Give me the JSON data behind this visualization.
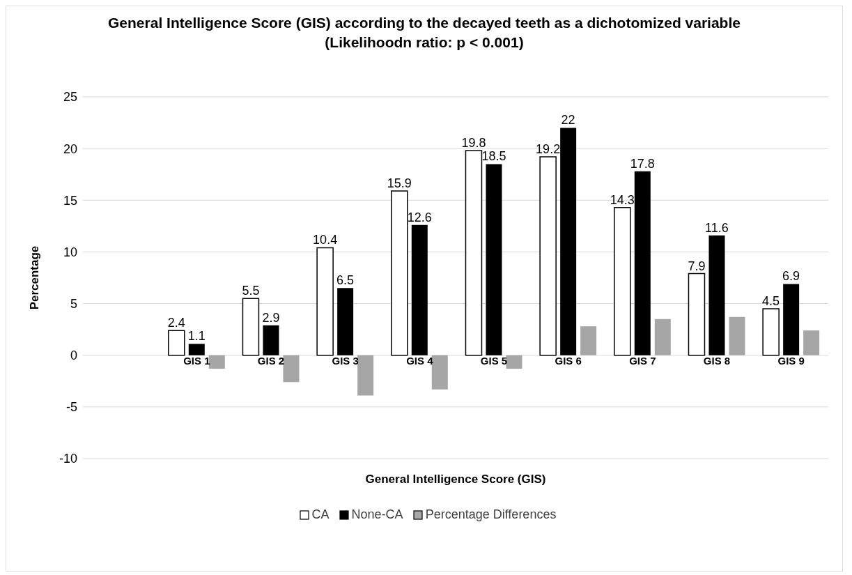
{
  "chart_data": {
    "type": "bar",
    "title": "General Intelligence Score (GIS) according to the decayed teeth as a dichotomized variable (Likelihoodn ratio: p < 0.001)",
    "xlabel": "General Intelligence Score (GIS)",
    "ylabel": "Percentage",
    "categories": [
      "GIS 1",
      "GIS 2",
      "GIS 3",
      "GIS 4",
      "GIS 5",
      "GIS 6",
      "GIS 7",
      "GIS 8",
      "GIS 9"
    ],
    "series": [
      {
        "name": "CA",
        "color": "#ffffff",
        "values": [
          2.4,
          5.5,
          10.4,
          15.9,
          19.8,
          19.2,
          14.3,
          7.9,
          4.5
        ],
        "value_labels": [
          "2.4",
          "5.5",
          "10.4",
          "15.9",
          "19.8",
          "19.2",
          "14.3",
          "7.9",
          "4.5"
        ]
      },
      {
        "name": "None-CA",
        "color": "#000000",
        "values": [
          1.1,
          2.9,
          6.5,
          12.6,
          18.5,
          22,
          17.8,
          11.6,
          6.9
        ],
        "value_labels": [
          "1.1",
          "2.9",
          "6.5",
          "12.6",
          "18.5",
          "22",
          "17.8",
          "11.6",
          "6.9"
        ]
      },
      {
        "name": "Percentage Differences",
        "color": "#a6a6a6",
        "values": [
          -1.3,
          -2.6,
          -3.9,
          -3.3,
          -1.3,
          2.8,
          3.5,
          3.7,
          2.4
        ]
      }
    ],
    "ylim": [
      -10,
      25
    ],
    "yticks": [
      -10,
      -5,
      0,
      5,
      10,
      15,
      20,
      25
    ],
    "grid": "y",
    "legend": "bottom"
  }
}
